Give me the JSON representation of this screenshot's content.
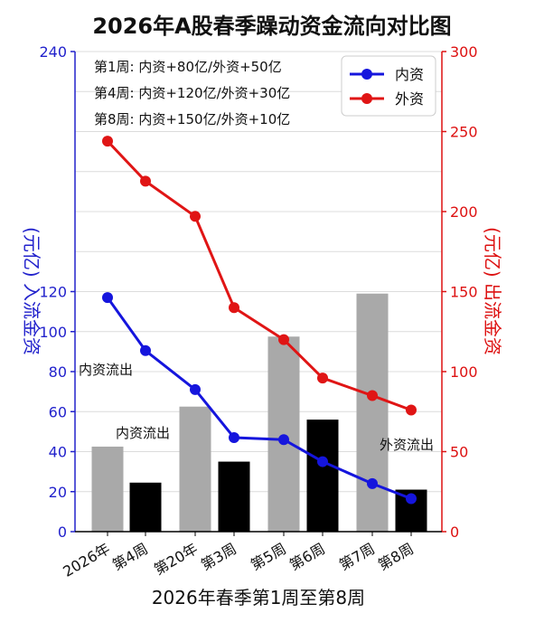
{
  "chart_data": {
    "type": "bar+line",
    "title": "2026年A股春季躁动资金流向对比图",
    "xlabel": "2026年春季第1周至第8周",
    "categories": [
      "2026年",
      "第4周",
      "第20年",
      "第3周",
      "第5周",
      "第6周",
      "第7周",
      "第8周"
    ],
    "left_axis": {
      "label": "(元亿) 入流金资",
      "range": [
        0,
        240
      ],
      "ticks": [
        "0",
        "20",
        "40",
        "60",
        "80",
        "100",
        "120",
        "140",
        "160",
        "180",
        "200",
        "220",
        "240"
      ],
      "visible_ticks": [
        0,
        20,
        40,
        60,
        80,
        100,
        120,
        240
      ],
      "color": "#2222cc"
    },
    "right_axis": {
      "label": "(元亿) 出流金资",
      "range": [
        0,
        300
      ],
      "ticks": [
        "0",
        "50",
        "100",
        "150",
        "200",
        "250",
        "300"
      ],
      "color": "#dd1111"
    },
    "bars": {
      "groups": [
        {
          "gray": 42.5,
          "black": 24.5
        },
        {
          "gray": 62.5,
          "black": 35
        },
        {
          "gray": 97.5,
          "black": 56
        },
        {
          "gray": 119,
          "black": 21
        }
      ],
      "gray_color": "#a9a9a9",
      "black_color": "#000000"
    },
    "series": [
      {
        "name": "内资",
        "axis": "left",
        "color": "#1515dd",
        "values": [
          117,
          90.5,
          71,
          47,
          46,
          35,
          24,
          16.5
        ]
      },
      {
        "name": "外资",
        "axis": "right",
        "color": "#e01515",
        "values": [
          244,
          219,
          197,
          140,
          120,
          96,
          85,
          76
        ]
      }
    ],
    "legend": {
      "position": "top-right",
      "items": [
        "内资",
        "外资"
      ]
    },
    "annotations": {
      "week_notes": [
        "第1周: 内资+80亿/外资+50亿",
        "第4周: 内资+120亿/外资+30亿",
        "第8周: 内资+150亿/外资+10亿"
      ],
      "bar_notes": [
        "内资流出",
        "内资流出",
        "外资流出"
      ]
    }
  }
}
